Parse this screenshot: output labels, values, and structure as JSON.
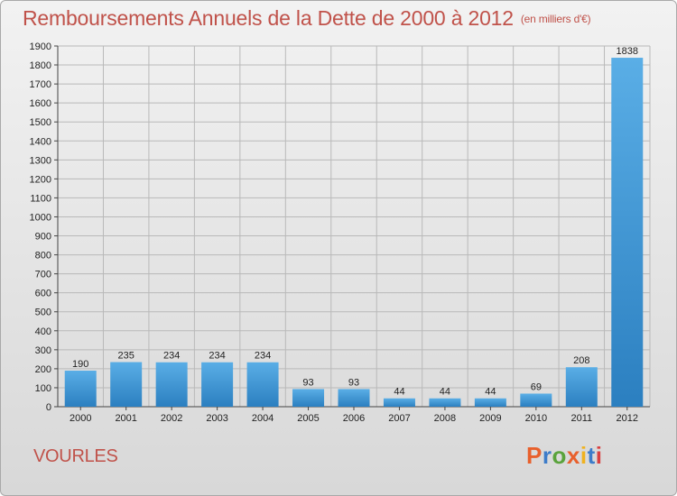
{
  "header": {
    "title": "Remboursements Annuels de la Dette de 2000 à 2012",
    "unit": "(en milliers d'€)"
  },
  "footer": {
    "commune": "VOURLES",
    "logo_text": "Proxiti",
    "logo_colors": [
      "#e8602c",
      "#3d7cc9",
      "#5aa33c",
      "#e8602c",
      "#f0b21f",
      "#3d7cc9",
      "#d94040"
    ]
  },
  "colors": {
    "bar_light": "#5aaee6",
    "bar_dark": "#2b7fc0",
    "grid": "#b9b9b9",
    "title": "#c0524a"
  },
  "chart_data": {
    "type": "bar",
    "categories": [
      "2000",
      "2001",
      "2002",
      "2003",
      "2004",
      "2005",
      "2006",
      "2007",
      "2008",
      "2009",
      "2010",
      "2011",
      "2012"
    ],
    "values": [
      190,
      235,
      234,
      234,
      234,
      93,
      93,
      44,
      44,
      44,
      69,
      208,
      1838
    ],
    "ylim": [
      0,
      1900
    ],
    "yticks": [
      0,
      100,
      200,
      300,
      400,
      500,
      600,
      700,
      800,
      900,
      1000,
      1100,
      1200,
      1300,
      1400,
      1500,
      1600,
      1700,
      1800,
      1900
    ],
    "grid": true,
    "xlabel": "",
    "ylabel": ""
  }
}
